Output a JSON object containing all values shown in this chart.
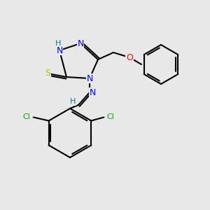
{
  "background_color": "#e8e8e8",
  "bond_color": "#000000",
  "bond_lw": 1.5,
  "colors": {
    "N": "#0000EE",
    "S": "#BBBB00",
    "O": "#FF0000",
    "Cl": "#00AA00",
    "H_teal": "#008080",
    "C": "#000000"
  },
  "font_size": 9,
  "font_size_small": 8
}
